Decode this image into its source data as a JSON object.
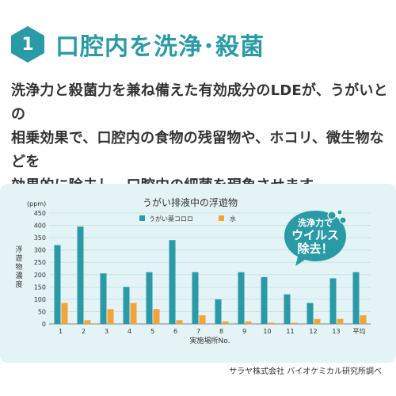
{
  "header": {
    "number": "1",
    "title": "口腔内を洗浄･殺菌"
  },
  "description": {
    "line1": "洗浄力と殺菌力を兼ね備えた有効成分のLDEが、うがいとの",
    "line2": "相乗効果で、口腔内の食物の残留物や、ホコリ、微生物などを",
    "line3": "効果的に除去し、口腔内の細菌を現象させます。"
  },
  "badge": {
    "line1": "洗浄力で",
    "line2": "ウイルス",
    "line3": "除去！"
  },
  "source": "サラヤ株式会社 バイオケミカル研究所調べ",
  "colors": {
    "accent": "#2a9aa6",
    "series_gargle": "#2a9aa6",
    "series_water": "#f2a33a",
    "panel": "#e3f3f6",
    "badge": "#2a9aa6"
  },
  "chart_data": {
    "type": "bar",
    "title": "うがい排液中の浮遊物",
    "unit": "(ppm)",
    "ylabel": "浮遊物濃度",
    "xlabel": "実施場所No.",
    "ylim": [
      0,
      450
    ],
    "yticks": [
      "0",
      "50",
      "100",
      "150",
      "200",
      "250",
      "300",
      "350",
      "400",
      "450"
    ],
    "categories": [
      "1",
      "2",
      "3",
      "4",
      "5",
      "6",
      "7",
      "8",
      "9",
      "10",
      "11",
      "12",
      "13",
      "平均"
    ],
    "series": [
      {
        "name": "うがい薬コロロ",
        "values": [
          320,
          395,
          205,
          150,
          210,
          340,
          210,
          100,
          210,
          190,
          120,
          85,
          185,
          210
        ]
      },
      {
        "name": "水",
        "values": [
          85,
          15,
          60,
          85,
          60,
          15,
          35,
          10,
          10,
          5,
          5,
          20,
          20,
          35
        ]
      }
    ],
    "legend_position": "top",
    "grid": true
  }
}
